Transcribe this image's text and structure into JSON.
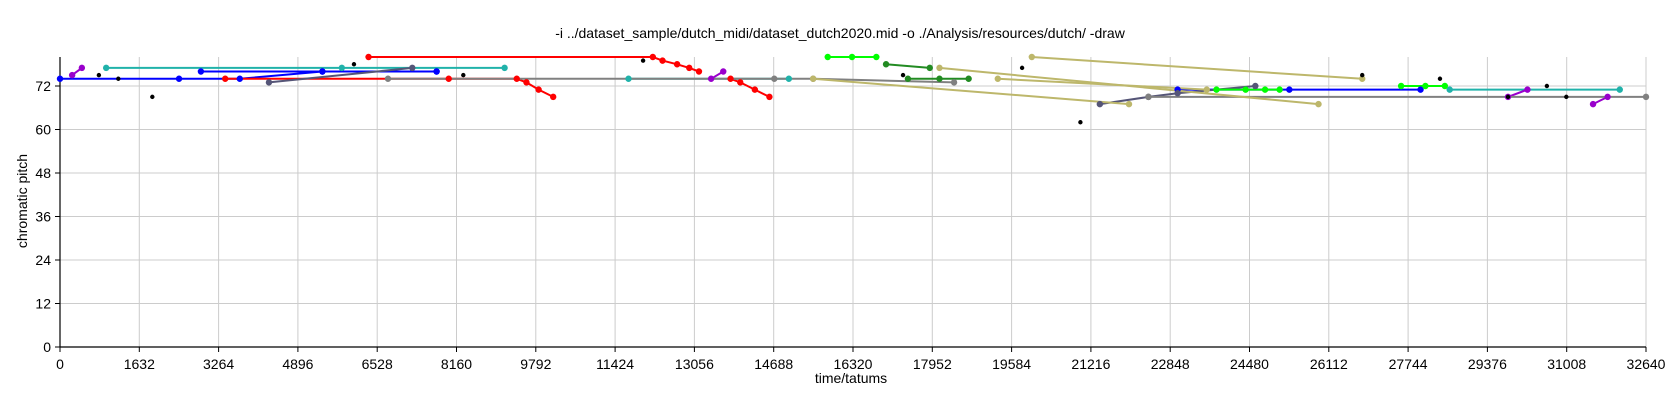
{
  "chart_data": {
    "type": "line",
    "title": "-i ../dataset_sample/dutch_midi/dataset_dutch2020.mid -o ./Analysis/resources/dutch/ -draw",
    "xlabel": "time/tatums",
    "ylabel": "chromatic pitch",
    "xlim": [
      0,
      32640
    ],
    "ylim": [
      0,
      80
    ],
    "xticks": [
      0,
      1632,
      3264,
      4896,
      6528,
      8160,
      9792,
      11424,
      13056,
      14688,
      16320,
      17952,
      19584,
      21216,
      22848,
      24480,
      26112,
      27744,
      29376,
      31008,
      32640
    ],
    "yticks": [
      0,
      12,
      24,
      36,
      48,
      60,
      72
    ],
    "grid": true,
    "series": [
      {
        "color": "#0000ff",
        "x": [
          0,
          2450,
          3700,
          5400,
          7750
        ],
        "y": [
          74,
          74,
          74,
          76,
          76
        ]
      },
      {
        "color": "#0000ff",
        "x": [
          2900,
          5400,
          7750
        ],
        "y": [
          76,
          76,
          76
        ]
      },
      {
        "color": "#0000ff",
        "x": [
          23000,
          25300,
          28000
        ],
        "y": [
          71,
          71,
          71
        ]
      },
      {
        "color": "#ff0000",
        "x": [
          6350,
          12200,
          12400,
          12700,
          12950,
          13150
        ],
        "y": [
          80,
          80,
          79,
          78,
          77,
          76
        ]
      },
      {
        "color": "#ff0000",
        "x": [
          3400,
          8000,
          9400,
          9600,
          9850,
          10150
        ],
        "y": [
          74,
          74,
          74,
          73,
          71,
          69
        ]
      },
      {
        "color": "#ff0000",
        "x": [
          13800,
          14000,
          14300,
          14600
        ],
        "y": [
          74,
          73,
          71,
          69
        ]
      },
      {
        "color": "#20b2aa",
        "x": [
          950,
          5800,
          9150
        ],
        "y": [
          77,
          77,
          77
        ]
      },
      {
        "color": "#20b2aa",
        "x": [
          11700,
          15000
        ],
        "y": [
          74,
          74
        ]
      },
      {
        "color": "#20b2aa",
        "x": [
          28600,
          32100
        ],
        "y": [
          71,
          71
        ]
      },
      {
        "color": "#9900cc",
        "x": [
          250,
          450
        ],
        "y": [
          75,
          77
        ]
      },
      {
        "color": "#9900cc",
        "x": [
          13400,
          13650
        ],
        "y": [
          74,
          76
        ]
      },
      {
        "color": "#9900cc",
        "x": [
          29800,
          30200
        ],
        "y": [
          69,
          71
        ]
      },
      {
        "color": "#9900cc",
        "x": [
          31550,
          31850
        ],
        "y": [
          67,
          69
        ]
      },
      {
        "color": "#555577",
        "x": [
          4300,
          7250
        ],
        "y": [
          73,
          77
        ]
      },
      {
        "color": "#555577",
        "x": [
          21400,
          22400,
          23000,
          24600
        ],
        "y": [
          67,
          69,
          70,
          72
        ]
      },
      {
        "color": "#808080",
        "x": [
          6750,
          14700,
          15500,
          18400
        ],
        "y": [
          74,
          74,
          74,
          73
        ]
      },
      {
        "color": "#808080",
        "x": [
          22400,
          32640
        ],
        "y": [
          69,
          69
        ]
      },
      {
        "color": "#228b22",
        "x": [
          17000,
          17900
        ],
        "y": [
          78,
          77
        ]
      },
      {
        "color": "#228b22",
        "x": [
          17450,
          18100,
          18700
        ],
        "y": [
          74,
          74,
          74
        ]
      },
      {
        "color": "#00ff00",
        "x": [
          15800,
          16300,
          16800
        ],
        "y": [
          80,
          80,
          80
        ]
      },
      {
        "color": "#00ff00",
        "x": [
          23800,
          24400,
          24800,
          25100
        ],
        "y": [
          71,
          71,
          71,
          71
        ]
      },
      {
        "color": "#00ff00",
        "x": [
          27600,
          28100,
          28500
        ],
        "y": [
          72,
          72,
          72
        ]
      },
      {
        "color": "#bdb76b",
        "x": [
          15500,
          22000
        ],
        "y": [
          74,
          67
        ]
      },
      {
        "color": "#bdb76b",
        "x": [
          18100,
          25900
        ],
        "y": [
          77,
          67
        ]
      },
      {
        "color": "#bdb76b",
        "x": [
          19300,
          23600
        ],
        "y": [
          74,
          71
        ]
      },
      {
        "color": "#bdb76b",
        "x": [
          20000,
          26800
        ],
        "y": [
          80,
          74
        ]
      }
    ],
    "extra_points": [
      {
        "x": 800,
        "y": 75,
        "color": "#000000"
      },
      {
        "x": 1200,
        "y": 74,
        "color": "#000000"
      },
      {
        "x": 1900,
        "y": 69,
        "color": "#000000"
      },
      {
        "x": 6050,
        "y": 78,
        "color": "#000000"
      },
      {
        "x": 8300,
        "y": 75,
        "color": "#000000"
      },
      {
        "x": 12000,
        "y": 79,
        "color": "#000000"
      },
      {
        "x": 17350,
        "y": 75,
        "color": "#000000"
      },
      {
        "x": 19800,
        "y": 77,
        "color": "#000000"
      },
      {
        "x": 21000,
        "y": 62,
        "color": "#000000"
      },
      {
        "x": 26800,
        "y": 75,
        "color": "#000000"
      },
      {
        "x": 28400,
        "y": 74,
        "color": "#000000"
      },
      {
        "x": 29800,
        "y": 69,
        "color": "#000000"
      },
      {
        "x": 30600,
        "y": 72,
        "color": "#000000"
      },
      {
        "x": 31000,
        "y": 69,
        "color": "#000000"
      }
    ]
  }
}
